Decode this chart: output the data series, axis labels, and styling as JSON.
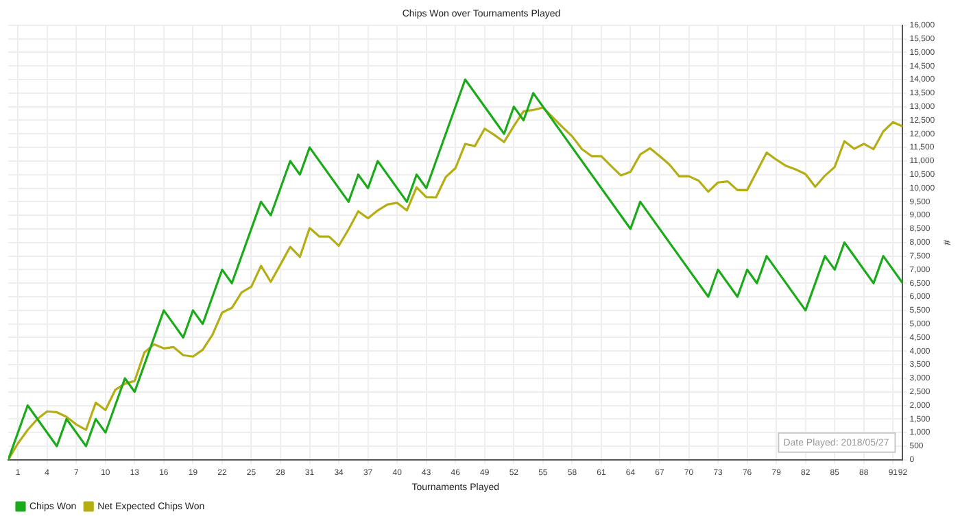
{
  "chart_data": {
    "type": "line",
    "title": "Chips Won over Tournaments Played",
    "xlabel": "Tournaments Played",
    "ylabel": "#",
    "annotations": [
      "Date Played: 2018/05/27"
    ],
    "xlim": [
      0,
      92
    ],
    "xticks": [
      1,
      4,
      7,
      10,
      13,
      16,
      19,
      22,
      25,
      28,
      31,
      34,
      37,
      40,
      43,
      46,
      49,
      52,
      55,
      58,
      61,
      64,
      67,
      70,
      73,
      76,
      79,
      82,
      85,
      88,
      91,
      92
    ],
    "ylim": [
      0,
      16000
    ],
    "yticks": [
      {
        "value": 0,
        "label": "0"
      },
      {
        "value": 500,
        "label": "500"
      },
      {
        "value": 1000,
        "label": "1,000"
      },
      {
        "value": 1500,
        "label": "1,500"
      },
      {
        "value": 2000,
        "label": "2,000"
      },
      {
        "value": 2500,
        "label": "2,500"
      },
      {
        "value": 3000,
        "label": "3,000"
      },
      {
        "value": 3500,
        "label": "3,500"
      },
      {
        "value": 4000,
        "label": "4,000"
      },
      {
        "value": 4500,
        "label": "4,500"
      },
      {
        "value": 5000,
        "label": "5,000"
      },
      {
        "value": 5500,
        "label": "5,500"
      },
      {
        "value": 6000,
        "label": "6,000"
      },
      {
        "value": 6500,
        "label": "6,500"
      },
      {
        "value": 7000,
        "label": "7,000"
      },
      {
        "value": 7500,
        "label": "7,500"
      },
      {
        "value": 8000,
        "label": "8,000"
      },
      {
        "value": 8500,
        "label": "8,500"
      },
      {
        "value": 9000,
        "label": "9,000"
      },
      {
        "value": 9500,
        "label": "9,500"
      },
      {
        "value": 10000,
        "label": "10,000"
      },
      {
        "value": 10500,
        "label": "10,500"
      },
      {
        "value": 11000,
        "label": "11,000"
      },
      {
        "value": 11500,
        "label": "11,500"
      },
      {
        "value": 12000,
        "label": "12,000"
      },
      {
        "value": 12500,
        "label": "12,500"
      },
      {
        "value": 13000,
        "label": "13,000"
      },
      {
        "value": 13500,
        "label": "13,500"
      },
      {
        "value": 14000,
        "label": "14,000"
      },
      {
        "value": 14500,
        "label": "14,500"
      },
      {
        "value": 15000,
        "label": "15,000"
      },
      {
        "value": 15500,
        "label": "15,500"
      },
      {
        "value": 16000,
        "label": "16,000"
      }
    ],
    "grid": true,
    "legend": "bottom left",
    "marker": "none",
    "line_style": "solid",
    "series": [
      {
        "name": "Chips Won",
        "color": "#1aaa1a",
        "x": [
          0,
          2,
          5,
          6,
          8,
          9,
          10,
          12,
          13,
          16,
          18,
          19,
          20,
          22,
          23,
          26,
          27,
          29,
          30,
          31,
          35,
          36,
          37,
          38,
          41,
          42,
          43,
          47,
          51,
          52,
          53,
          54,
          64,
          65,
          72,
          73,
          75,
          76,
          77,
          78,
          82,
          84,
          85,
          86,
          89,
          90,
          92
        ],
        "values": [
          0,
          2000,
          500,
          1500,
          500,
          1500,
          1000,
          3000,
          2500,
          5500,
          4500,
          5500,
          5000,
          7000,
          6500,
          9500,
          9000,
          11000,
          10500,
          11500,
          9500,
          10500,
          10000,
          11000,
          9500,
          10500,
          10000,
          14000,
          12000,
          13000,
          12500,
          13500,
          8500,
          9500,
          6000,
          7000,
          6000,
          7000,
          6500,
          7500,
          5500,
          7500,
          7000,
          8000,
          6500,
          7500,
          6500
        ]
      },
      {
        "name": "Net Expected Chips Won",
        "color": "#b4ae14",
        "x": [
          0,
          1,
          2,
          3,
          4,
          5,
          6,
          7,
          8,
          9,
          10,
          11,
          12,
          13,
          14,
          15,
          16,
          17,
          18,
          19,
          20,
          21,
          22,
          23,
          24,
          25,
          26,
          27,
          28,
          29,
          30,
          31,
          32,
          33,
          34,
          35,
          36,
          37,
          38,
          39,
          40,
          41,
          42,
          43,
          44,
          45,
          46,
          47,
          48,
          49,
          50,
          51,
          52,
          53,
          54,
          55,
          56,
          57,
          58,
          59,
          60,
          61,
          62,
          63,
          64,
          65,
          66,
          67,
          68,
          69,
          70,
          71,
          72,
          73,
          74,
          75,
          76,
          77,
          78,
          79,
          80,
          81,
          82,
          83,
          84,
          85,
          86,
          87,
          88,
          89,
          90,
          91,
          92
        ],
        "values": [
          0,
          600,
          1100,
          1500,
          1780,
          1750,
          1580,
          1300,
          1100,
          2100,
          1830,
          2570,
          2800,
          2900,
          3950,
          4250,
          4100,
          4150,
          3850,
          3800,
          4050,
          4600,
          5420,
          5590,
          6160,
          6370,
          7140,
          6550,
          7190,
          7840,
          7470,
          8530,
          8220,
          8220,
          7880,
          8480,
          9150,
          8890,
          9180,
          9400,
          9460,
          9180,
          10030,
          9670,
          9660,
          10410,
          10740,
          11630,
          11550,
          12190,
          11960,
          11700,
          12290,
          12830,
          12880,
          12970,
          12610,
          12250,
          11910,
          11440,
          11180,
          11180,
          10820,
          10470,
          10600,
          11240,
          11470,
          11180,
          10870,
          10440,
          10440,
          10280,
          9870,
          10210,
          10250,
          9930,
          9930,
          10620,
          11310,
          11050,
          10820,
          10690,
          10520,
          10050,
          10460,
          10780,
          11730,
          11450,
          11630,
          11440,
          12090,
          12430,
          12270
        ]
      }
    ]
  }
}
